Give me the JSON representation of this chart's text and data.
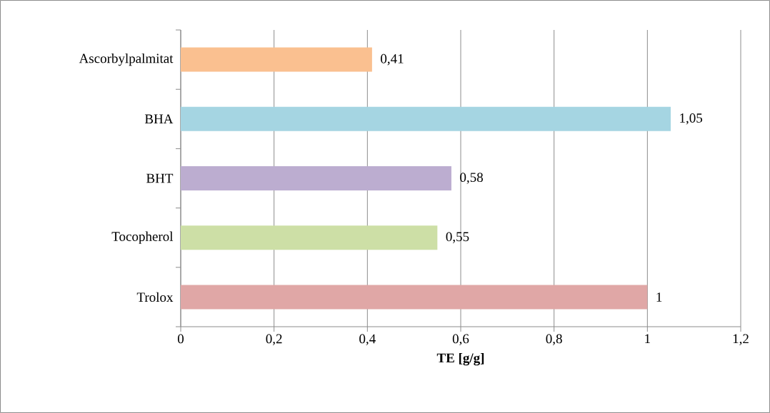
{
  "chart_data": {
    "type": "bar",
    "orientation": "horizontal",
    "categories": [
      "Ascorbylpalmitat",
      "BHA",
      "BHT",
      "Tocopherol",
      "Trolox"
    ],
    "values": [
      0.41,
      1.05,
      0.58,
      0.55,
      1
    ],
    "colors": [
      "#fac090",
      "#a5d5e2",
      "#bcadd0",
      "#cddfa6",
      "#e0a7a6"
    ],
    "value_labels": [
      "0,41",
      "1,05",
      "0,58",
      "0,55",
      "1"
    ],
    "xlabel": "TE [g/g]",
    "xlim": [
      0,
      1.2
    ],
    "xticks": [
      0,
      {
        "value": 0.2,
        "label": "0,2"
      },
      {
        "value": 0.4,
        "label": "0,4"
      },
      {
        "value": 0.6,
        "label": "0,6"
      },
      {
        "value": 0.8,
        "label": "0,8"
      },
      1,
      {
        "value": 1.2,
        "label": "1,2"
      }
    ],
    "grid": "x"
  }
}
